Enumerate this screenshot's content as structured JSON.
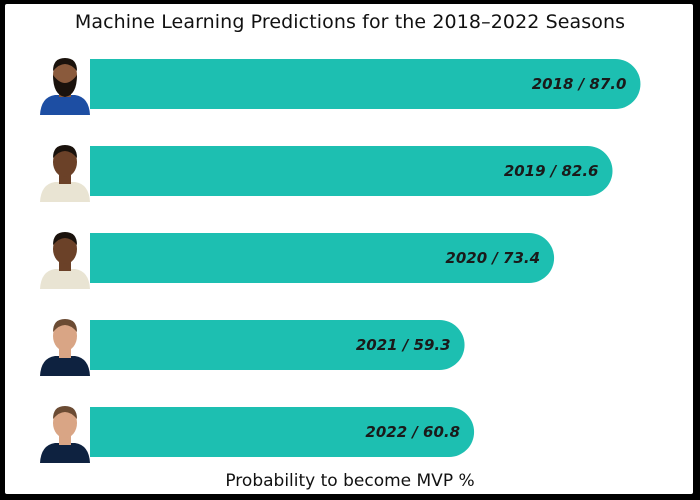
{
  "title": "Machine Learning Predictions for the 2018–2022 Seasons",
  "xlabel": "Probability to become MVP %",
  "colors": {
    "bar": "#1dbfb1",
    "frame": "#000000"
  },
  "chart_data": {
    "type": "bar",
    "orientation": "horizontal",
    "title": "Machine Learning Predictions for the 2018–2022 Seasons",
    "xlabel": "Probability to become MVP %",
    "ylabel": "",
    "categories": [
      "2018",
      "2019",
      "2020",
      "2021",
      "2022"
    ],
    "values": [
      87.0,
      82.6,
      73.4,
      59.3,
      60.8
    ],
    "labels": [
      "2018 / 87.0",
      "2019 / 82.6",
      "2020 / 73.4",
      "2021 / 59.3",
      "2022 / 60.8"
    ],
    "player_icons": [
      "player-76ers-icon",
      "player-bucks-icon",
      "player-bucks-icon",
      "player-nuggets-icon",
      "player-nuggets-icon"
    ],
    "xlim": [
      0,
      100
    ],
    "grid": false,
    "legend": "none"
  }
}
